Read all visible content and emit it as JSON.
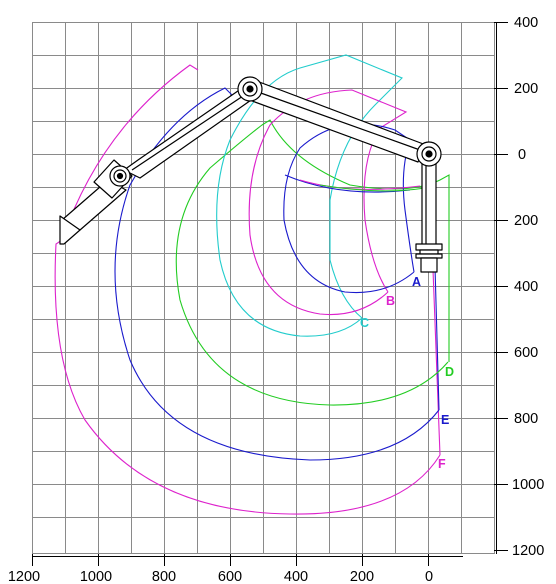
{
  "diagram": {
    "x_axis_labels": [
      "1200",
      "1000",
      "800",
      "600",
      "400",
      "200",
      "0"
    ],
    "y_axis_labels": [
      "400",
      "200",
      "0",
      "200",
      "400",
      "600",
      "800",
      "1000",
      "1200"
    ],
    "curves": [
      {
        "label": "A",
        "color": "#1a1acc"
      },
      {
        "label": "B",
        "color": "#dd22cc"
      },
      {
        "label": "C",
        "color": "#22cccc"
      },
      {
        "label": "D",
        "color": "#22cc22"
      },
      {
        "label": "E",
        "color": "#1a1acc"
      },
      {
        "label": "F",
        "color": "#dd22cc"
      }
    ]
  }
}
